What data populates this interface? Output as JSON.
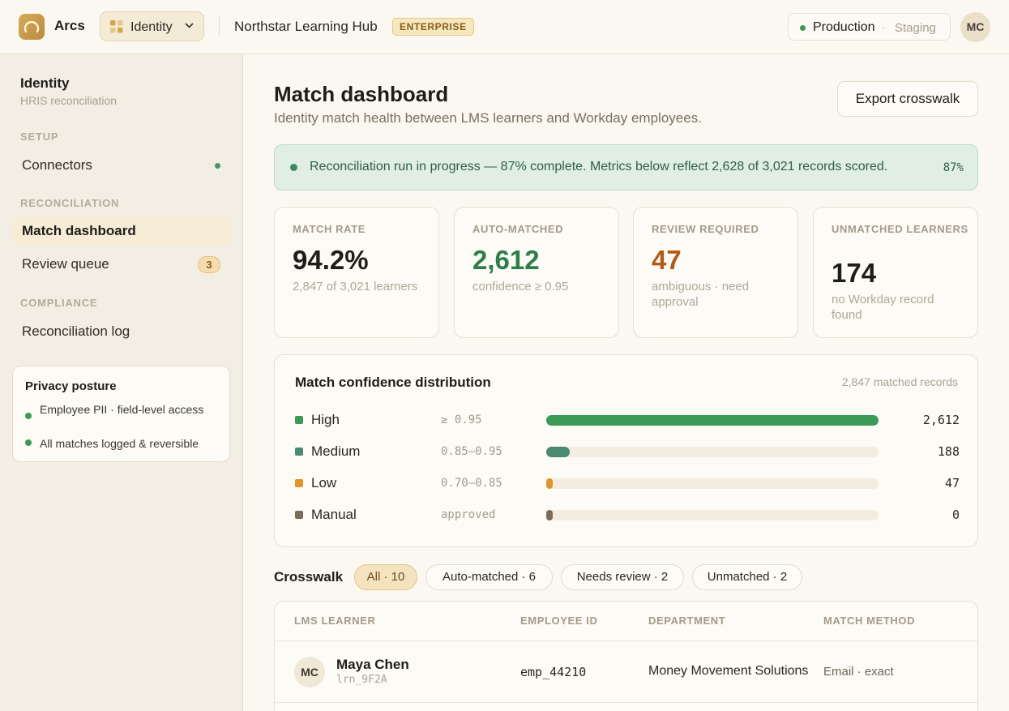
{
  "app": {
    "brand": "Arcs",
    "workspace": "Identity",
    "org": "Northstar Learning Hub",
    "tier": "ENTERPRISE"
  },
  "env": {
    "active": "Production",
    "separator": "·",
    "other": "Staging"
  },
  "user": {
    "initials": "MC"
  },
  "sidebar": {
    "title": "Identity",
    "subtitle": "HRIS reconciliation",
    "sections": {
      "setup": "SETUP",
      "reconciliation": "RECONCILIATION",
      "compliance": "COMPLIANCE"
    },
    "items": {
      "connectors": "Connectors",
      "match_dashboard": "Match dashboard",
      "review_queue": "Review queue",
      "review_badge": "3",
      "reconciliation_log": "Reconciliation log"
    },
    "privacy": {
      "title": "Privacy posture",
      "items": [
        "Employee PII · field-level access",
        "All matches logged & reversible"
      ]
    }
  },
  "main": {
    "title": "Match dashboard",
    "subtitle": "Identity match health between LMS learners and Workday employees.",
    "export_label": "Export crosswalk",
    "banner": {
      "text": "Reconciliation run in progress — 87% complete. Metrics below reflect 2,628 of 3,021 records scored.",
      "percent": "87%"
    },
    "kpis": [
      {
        "label": "MATCH RATE",
        "value": "94.2%",
        "sub": "2,847 of 3,021 learners",
        "color": "#1f1d1a"
      },
      {
        "label": "AUTO-MATCHED",
        "value": "2,612",
        "sub": "confidence ≥ 0.95",
        "color": "#2f7d4a"
      },
      {
        "label": "REVIEW REQUIRED",
        "value": "47",
        "sub": "ambiguous · need approval",
        "color": "#b35a17"
      },
      {
        "label": "UNMATCHED LEARNERS",
        "value": "174",
        "sub": "no Workday record found",
        "color": "#1f1d1a"
      }
    ],
    "distribution": {
      "title": "Match confidence distribution",
      "note": "2,847 matched records",
      "rows": [
        {
          "name": "High",
          "range": "≥ 0.95",
          "count": "2,612",
          "fraction": 1.0,
          "color": "#3a9a56"
        },
        {
          "name": "Medium",
          "range": "0.85–0.95",
          "count": "188",
          "fraction": 0.07,
          "color": "#4a8a70"
        },
        {
          "name": "Low",
          "range": "0.70–0.85",
          "count": "47",
          "fraction": 0.02,
          "color": "#e0952b"
        },
        {
          "name": "Manual",
          "range": "approved",
          "count": "0",
          "fraction": 0.02,
          "color": "#7a6c58"
        }
      ]
    },
    "crosswalk": {
      "title": "Crosswalk",
      "filters": [
        "All · 10",
        "Auto-matched · 6",
        "Needs review · 2",
        "Unmatched · 2"
      ],
      "columns": [
        "LMS LEARNER",
        "EMPLOYEE ID",
        "DEPARTMENT",
        "MATCH METHOD"
      ],
      "rows": [
        {
          "initials": "MC",
          "name": "Maya Chen",
          "learner_id": "lrn_9F2A",
          "employee_id": "emp_44210",
          "department": "Money Movement Solutions",
          "method": "Email · exact"
        }
      ]
    }
  }
}
